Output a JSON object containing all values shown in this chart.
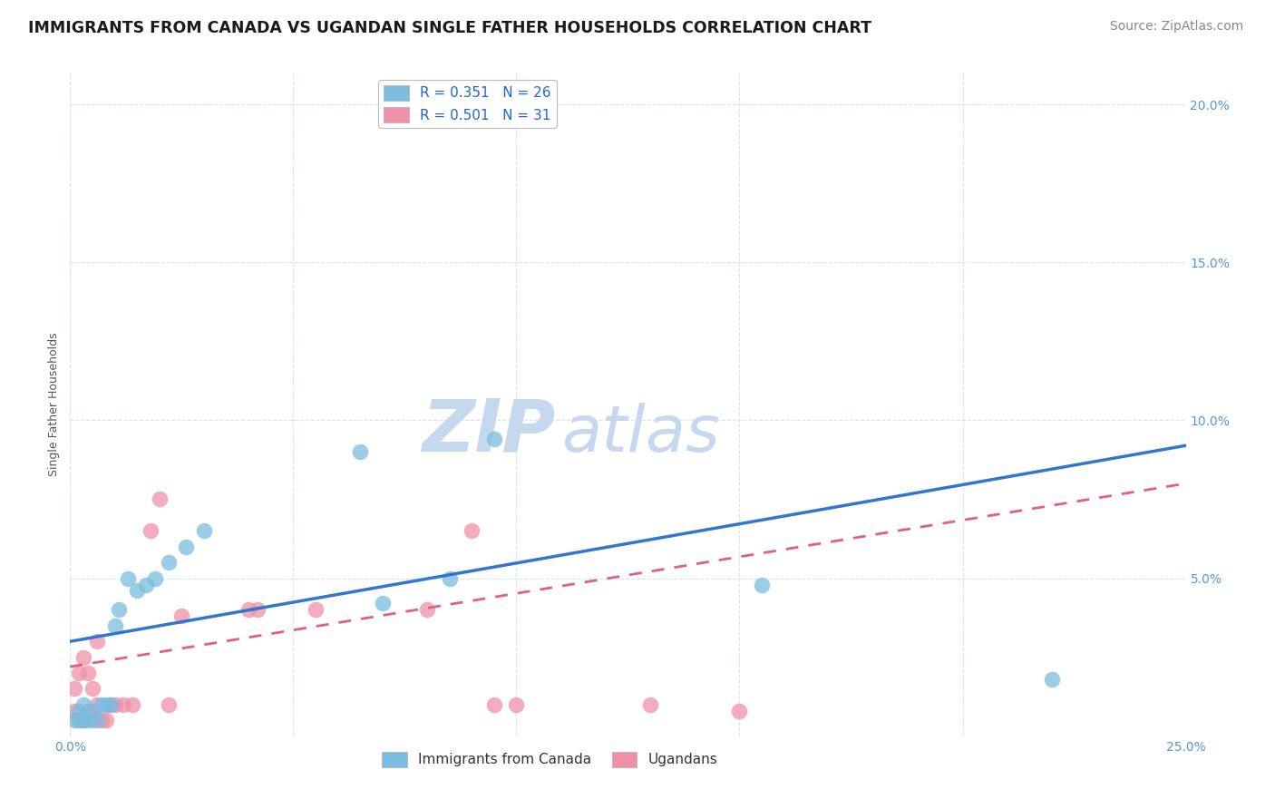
{
  "title": "IMMIGRANTS FROM CANADA VS UGANDAN SINGLE FATHER HOUSEHOLDS CORRELATION CHART",
  "source": "Source: ZipAtlas.com",
  "ylabel": "Single Father Households",
  "xlim": [
    0.0,
    0.25
  ],
  "ylim": [
    0.0,
    0.21
  ],
  "blue_color": "#7bbde0",
  "pink_color": "#f090a8",
  "blue_line_color": "#3377cc",
  "pink_line_color": "#e06080",
  "watermark_zip_color": "#c5d8ee",
  "watermark_atlas_color": "#c5d8ee",
  "axis_color": "#5599cc",
  "grid_color": "#d5e5f0",
  "title_color": "#1a1a1a",
  "title_fontsize": 12.5,
  "source_fontsize": 10,
  "axis_label_fontsize": 9,
  "tick_fontsize": 10,
  "blue_x": [
    0.001,
    0.002,
    0.002,
    0.003,
    0.003,
    0.004,
    0.005,
    0.006,
    0.007,
    0.008,
    0.009,
    0.01,
    0.011,
    0.013,
    0.015,
    0.017,
    0.019,
    0.022,
    0.026,
    0.03,
    0.065,
    0.07,
    0.085,
    0.095,
    0.155,
    0.22
  ],
  "blue_y": [
    0.005,
    0.005,
    0.008,
    0.005,
    0.01,
    0.005,
    0.008,
    0.005,
    0.01,
    0.01,
    0.01,
    0.035,
    0.04,
    0.05,
    0.046,
    0.048,
    0.05,
    0.055,
    0.06,
    0.065,
    0.09,
    0.042,
    0.05,
    0.094,
    0.048,
    0.018
  ],
  "pink_x": [
    0.001,
    0.001,
    0.002,
    0.002,
    0.003,
    0.003,
    0.004,
    0.004,
    0.005,
    0.005,
    0.006,
    0.006,
    0.007,
    0.008,
    0.009,
    0.01,
    0.012,
    0.014,
    0.018,
    0.02,
    0.022,
    0.025,
    0.04,
    0.042,
    0.055,
    0.08,
    0.09,
    0.095,
    0.1,
    0.13,
    0.15
  ],
  "pink_y": [
    0.008,
    0.015,
    0.005,
    0.02,
    0.005,
    0.025,
    0.008,
    0.02,
    0.005,
    0.015,
    0.01,
    0.03,
    0.005,
    0.005,
    0.01,
    0.01,
    0.01,
    0.01,
    0.065,
    0.075,
    0.01,
    0.038,
    0.04,
    0.04,
    0.04,
    0.04,
    0.065,
    0.01,
    0.01,
    0.01,
    0.008
  ],
  "blue_trend_x0": 0.0,
  "blue_trend_y0": 0.03,
  "blue_trend_x1": 0.25,
  "blue_trend_y1": 0.092,
  "pink_trend_x0": 0.0,
  "pink_trend_y0": 0.022,
  "pink_trend_x1": 0.25,
  "pink_trend_y1": 0.08
}
